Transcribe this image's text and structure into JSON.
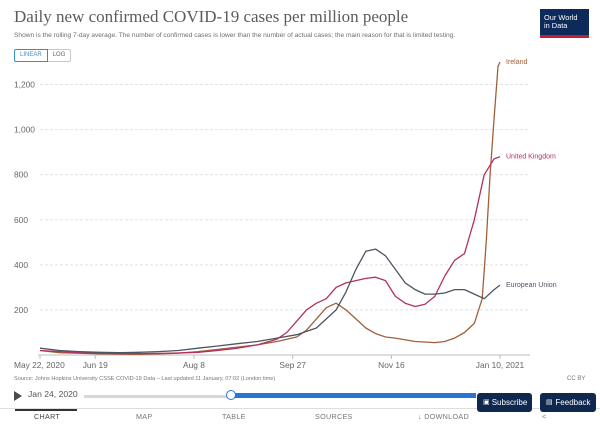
{
  "header": {
    "title": "Daily new confirmed COVID-19 cases per million people",
    "subtitle": "Shown is the rolling 7-day average. The number of confirmed cases is lower than the number of actual cases; the main reason for that is limited testing.",
    "logo_line1": "Our World",
    "logo_line2": "in Data"
  },
  "scale_toggle": {
    "linear": "LINEAR",
    "log": "LOG"
  },
  "footer": {
    "source": "Source: Johns Hopkins University CSSE COVID-19 Data – Last updated 11 January, 07:02 (London time)",
    "license": "CC BY"
  },
  "timeline": {
    "start_date": "Jan 24, 2020",
    "position_fraction": 0.3
  },
  "tabs": [
    {
      "label": "CHART"
    },
    {
      "label": "MAP"
    },
    {
      "label": "TABLE"
    },
    {
      "label": "SOURCES"
    },
    {
      "label": "DOWNLOAD",
      "icon": "↓"
    },
    {
      "label": "<",
      "icon": ""
    }
  ],
  "buttons": {
    "subscribe": "Subscribe",
    "feedback": "Feedback"
  },
  "colors": {
    "ireland": "#a0603c",
    "uk": "#b3325e",
    "eu": "#4d5563",
    "grid": "#e2e2e2"
  },
  "chart_data": {
    "type": "line",
    "title": "Daily new confirmed COVID-19 cases per million people",
    "xlabel": "",
    "ylabel": "",
    "ylim": [
      0,
      1300
    ],
    "yticks": [
      200,
      400,
      600,
      800,
      1000,
      1200
    ],
    "ytick_labels": [
      "200",
      "400",
      "600",
      "800",
      "1,000",
      "1,200"
    ],
    "xlim": [
      0,
      233
    ],
    "xticks": [
      {
        "day": 0,
        "label": "May 22, 2020"
      },
      {
        "day": 28,
        "label": "Jun 19"
      },
      {
        "day": 78,
        "label": "Aug 8"
      },
      {
        "day": 128,
        "label": "Sep 27"
      },
      {
        "day": 178,
        "label": "Nov 16"
      },
      {
        "day": 233,
        "label": "Jan 10, 2021"
      }
    ],
    "grid": true,
    "legend": "inline-right",
    "series": [
      {
        "name": "Ireland",
        "color": "#a0603c",
        "x": [
          0,
          10,
          20,
          30,
          40,
          50,
          60,
          70,
          80,
          90,
          100,
          110,
          120,
          130,
          135,
          140,
          145,
          150,
          155,
          160,
          165,
          170,
          175,
          180,
          190,
          200,
          205,
          210,
          215,
          220,
          224,
          226,
          228,
          230,
          232,
          233
        ],
        "y": [
          20,
          10,
          8,
          5,
          4,
          3,
          5,
          8,
          15,
          25,
          35,
          45,
          60,
          80,
          110,
          160,
          210,
          230,
          200,
          160,
          120,
          95,
          80,
          75,
          60,
          55,
          60,
          75,
          100,
          140,
          250,
          500,
          800,
          1050,
          1280,
          1300
        ]
      },
      {
        "name": "United Kingdom",
        "color": "#b3325e",
        "x": [
          0,
          10,
          20,
          30,
          40,
          50,
          60,
          70,
          80,
          90,
          100,
          110,
          120,
          125,
          130,
          135,
          140,
          145,
          150,
          155,
          160,
          165,
          170,
          175,
          180,
          185,
          190,
          195,
          200,
          205,
          210,
          215,
          220,
          225,
          230,
          233
        ],
        "y": [
          20,
          15,
          10,
          8,
          6,
          6,
          7,
          9,
          12,
          20,
          30,
          45,
          70,
          100,
          150,
          200,
          230,
          250,
          300,
          320,
          330,
          340,
          345,
          330,
          260,
          230,
          215,
          225,
          260,
          350,
          420,
          450,
          600,
          800,
          870,
          880
        ]
      },
      {
        "name": "European Union",
        "color": "#4d5563",
        "x": [
          0,
          10,
          20,
          30,
          40,
          50,
          60,
          70,
          80,
          90,
          100,
          110,
          120,
          130,
          140,
          150,
          155,
          160,
          165,
          170,
          175,
          180,
          185,
          190,
          195,
          200,
          205,
          210,
          215,
          220,
          225,
          230,
          233
        ],
        "y": [
          30,
          20,
          15,
          12,
          10,
          12,
          15,
          20,
          30,
          40,
          50,
          60,
          75,
          90,
          120,
          200,
          280,
          380,
          460,
          470,
          440,
          380,
          320,
          290,
          270,
          270,
          275,
          290,
          290,
          270,
          250,
          290,
          310
        ]
      }
    ]
  }
}
